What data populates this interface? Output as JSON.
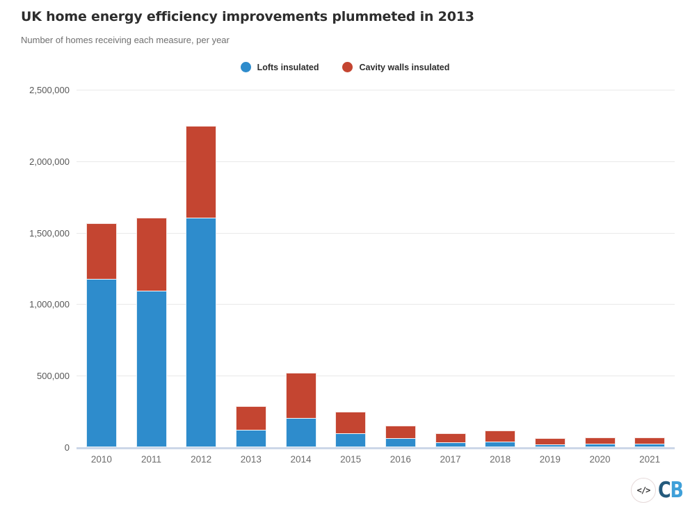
{
  "header": {
    "title": "UK home energy efficiency improvements plummeted in 2013",
    "subtitle": "Number of homes receiving each measure, per year"
  },
  "legend": [
    {
      "label": "Lofts insulated",
      "color": "#2E8CCC"
    },
    {
      "label": "Cavity walls insulated",
      "color": "#C44531"
    }
  ],
  "footer": {
    "embed_icon": "</>",
    "logo_c": "C",
    "logo_b": "B"
  },
  "colors": {
    "lofts_blue": "#2E8CCC",
    "cavity_red": "#C44531",
    "gridline": "#e9e9e9",
    "axis_line": "#ccd7e8",
    "title_text": "#2d2d2d",
    "subtitle_text": "#6f6f6f",
    "tick_text": "#575757"
  },
  "chart_data": {
    "type": "bar",
    "stacked": true,
    "title": "UK home energy efficiency improvements plummeted in 2013",
    "subtitle": "Number of homes receiving each measure, per year",
    "xlabel": "",
    "ylabel": "",
    "categories": [
      "2010",
      "2011",
      "2012",
      "2013",
      "2014",
      "2015",
      "2016",
      "2017",
      "2018",
      "2019",
      "2020",
      "2021"
    ],
    "series": [
      {
        "name": "Lofts insulated",
        "color": "#2E8CCC",
        "values": [
          1175000,
          1095000,
          1605000,
          120000,
          205000,
          97000,
          63000,
          33000,
          39000,
          20000,
          25000,
          25000
        ]
      },
      {
        "name": "Cavity walls insulated",
        "color": "#C44531",
        "values": [
          390000,
          510000,
          640000,
          165000,
          315000,
          150000,
          90000,
          64000,
          78000,
          42000,
          45000,
          45000
        ]
      }
    ],
    "totals": [
      1565000,
      1605000,
      2245000,
      285000,
      520000,
      247000,
      153000,
      97000,
      117000,
      62000,
      70000,
      70000
    ],
    "ylim": [
      0,
      2500000
    ],
    "yticks": [
      0,
      500000,
      1000000,
      1500000,
      2000000,
      2500000
    ],
    "ytick_labels": [
      "0",
      "500,000",
      "1,000,000",
      "1,500,000",
      "2,000,000",
      "2,500,000"
    ],
    "grid": true,
    "legend_position": "top-center"
  }
}
